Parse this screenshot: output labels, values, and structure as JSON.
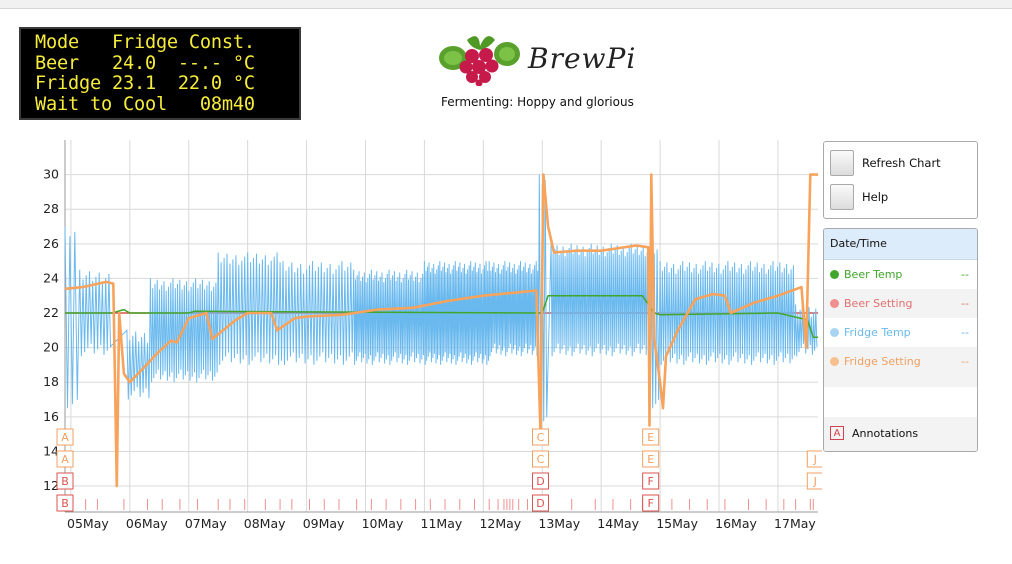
{
  "lcd": {
    "lines": [
      "Mode   Fridge Const.",
      "Beer   24.0  --.- °C",
      "Fridge 23.1  22.0 °C",
      "Wait to Cool   08m40"
    ]
  },
  "brand": {
    "name": "BrewPi",
    "subtitle": "Fermenting: Hoppy and glorious"
  },
  "buttons": {
    "refresh": "Refresh Chart",
    "help": "Help"
  },
  "legend": {
    "header": "Date/Time",
    "series": [
      {
        "name": "Beer Temp",
        "value": "--",
        "color": "#41a62a"
      },
      {
        "name": "Beer Setting",
        "value": "--",
        "color": "#ef6f6f"
      },
      {
        "name": "Fridge Temp",
        "value": "--",
        "color": "#6ab9ee"
      },
      {
        "name": "Fridge Setting",
        "value": "--",
        "color": "#f7a35c"
      }
    ],
    "annotations_label": "Annotations",
    "annotations_box": "A"
  },
  "chart_data": {
    "type": "line",
    "x_tick_labels": [
      "05May",
      "06May",
      "07May",
      "08May",
      "09May",
      "10May",
      "11May",
      "12May",
      "13May",
      "14May",
      "15May",
      "16May",
      "17May"
    ],
    "xlim": [
      -0.1,
      12.68
    ],
    "ylim": [
      10.5,
      32
    ],
    "y_ticks": [
      12,
      14,
      16,
      18,
      20,
      22,
      24,
      26,
      28,
      30
    ],
    "grid": true,
    "legend_position": "right",
    "series": [
      {
        "name": "Beer Temp",
        "color": "#41a62a",
        "points": [
          [
            -0.1,
            22
          ],
          [
            0.7,
            22
          ],
          [
            0.9,
            22.2
          ],
          [
            1.0,
            22.0
          ],
          [
            2.0,
            22.0
          ],
          [
            2.1,
            22.1
          ],
          [
            8.0,
            22.0
          ],
          [
            8.1,
            23.0
          ],
          [
            9.7,
            23.0
          ],
          [
            9.9,
            22.0
          ],
          [
            10.0,
            21.9
          ],
          [
            12.0,
            22.0
          ],
          [
            12.5,
            21.6
          ],
          [
            12.6,
            20.6
          ],
          [
            12.68,
            20.6
          ]
        ]
      },
      {
        "name": "Beer Setting",
        "color": "#d9534f",
        "points": [
          [
            -0.1,
            22
          ],
          [
            12.68,
            22
          ]
        ]
      },
      {
        "name": "Fridge Temp",
        "color": "#6ab9ee",
        "segments": [
          {
            "from": -0.1,
            "to": 0.15,
            "lo": 16.5,
            "hi": 27.0,
            "cycles": 3
          },
          {
            "from": 0.15,
            "to": 0.7,
            "lo": 19.5,
            "hi": 24.5,
            "cycles": 10
          },
          {
            "from": 0.95,
            "to": 1.35,
            "lo": 17.0,
            "hi": 21.0,
            "cycles": 8
          },
          {
            "from": 1.35,
            "to": 2.5,
            "lo": 18.0,
            "hi": 24.0,
            "cycles": 30
          },
          {
            "from": 2.5,
            "to": 3.6,
            "lo": 19.0,
            "hi": 25.5,
            "cycles": 22
          },
          {
            "from": 3.6,
            "to": 4.8,
            "lo": 19.0,
            "hi": 25.0,
            "cycles": 24
          },
          {
            "from": 4.8,
            "to": 6.0,
            "lo": 19.0,
            "hi": 24.5,
            "cycles": 40
          },
          {
            "from": 6.0,
            "to": 7.1,
            "lo": 19.0,
            "hi": 25.0,
            "cycles": 42
          },
          {
            "from": 7.1,
            "to": 7.95,
            "lo": 19.5,
            "hi": 25.0,
            "cycles": 32
          },
          {
            "from": 7.95,
            "to": 8.1,
            "lo": 15.5,
            "hi": 30.0,
            "cycles": 3
          },
          {
            "from": 8.15,
            "to": 9.85,
            "lo": 19.5,
            "hi": 26.0,
            "cycles": 50
          },
          {
            "from": 9.85,
            "to": 10.0,
            "lo": 16.5,
            "hi": 26.0,
            "cycles": 3
          },
          {
            "from": 10.0,
            "to": 12.3,
            "lo": 19.0,
            "hi": 25.0,
            "cycles": 60
          },
          {
            "from": 12.3,
            "to": 12.68,
            "lo": 19.5,
            "hi": 22.5,
            "cycles": 10
          }
        ]
      },
      {
        "name": "Fridge Setting",
        "color": "#f7a35c",
        "points": [
          [
            -0.1,
            23.4
          ],
          [
            0.2,
            23.5
          ],
          [
            0.6,
            23.8
          ],
          [
            0.72,
            23.7
          ],
          [
            0.78,
            12.0
          ],
          [
            0.82,
            22.0
          ],
          [
            0.9,
            18.5
          ],
          [
            1.0,
            18.0
          ],
          [
            1.2,
            18.7
          ],
          [
            1.5,
            19.8
          ],
          [
            1.7,
            20.4
          ],
          [
            1.8,
            20.3
          ],
          [
            2.0,
            21.7
          ],
          [
            2.3,
            22.0
          ],
          [
            2.4,
            20.5
          ],
          [
            2.8,
            21.6
          ],
          [
            3.0,
            22.0
          ],
          [
            3.4,
            22.0
          ],
          [
            3.5,
            21.0
          ],
          [
            3.8,
            21.7
          ],
          [
            4.0,
            21.8
          ],
          [
            4.6,
            21.9
          ],
          [
            5.2,
            22.2
          ],
          [
            5.8,
            22.3
          ],
          [
            6.4,
            22.7
          ],
          [
            7.0,
            23.0
          ],
          [
            7.6,
            23.2
          ],
          [
            7.9,
            23.3
          ],
          [
            7.97,
            15.0
          ],
          [
            8.02,
            30.0
          ],
          [
            8.1,
            27.0
          ],
          [
            8.2,
            25.5
          ],
          [
            8.6,
            25.6
          ],
          [
            9.0,
            25.6
          ],
          [
            9.6,
            25.9
          ],
          [
            9.8,
            25.8
          ],
          [
            9.82,
            15.5
          ],
          [
            9.85,
            30.0
          ],
          [
            9.9,
            20.5
          ],
          [
            10.0,
            18.0
          ],
          [
            10.05,
            16.5
          ],
          [
            10.1,
            19.5
          ],
          [
            10.3,
            21.0
          ],
          [
            10.6,
            22.8
          ],
          [
            10.9,
            23.1
          ],
          [
            11.1,
            23.0
          ],
          [
            11.2,
            22.0
          ],
          [
            11.6,
            22.6
          ],
          [
            12.0,
            23.0
          ],
          [
            12.4,
            23.5
          ],
          [
            12.48,
            20.0
          ],
          [
            12.55,
            30.0
          ],
          [
            12.68,
            30.0
          ]
        ]
      }
    ],
    "annotations": [
      {
        "label": "A",
        "x": -0.05,
        "row": 0
      },
      {
        "label": "A",
        "x": -0.05,
        "row": 1
      },
      {
        "label": "B",
        "x": -0.05,
        "row": 2
      },
      {
        "label": "B",
        "x": -0.05,
        "row": 3
      },
      {
        "label": "C",
        "x": 7.97,
        "row": 0
      },
      {
        "label": "C",
        "x": 7.97,
        "row": 1
      },
      {
        "label": "D",
        "x": 7.97,
        "row": 2
      },
      {
        "label": "D",
        "x": 7.97,
        "row": 3
      },
      {
        "label": "E",
        "x": 9.84,
        "row": 0
      },
      {
        "label": "E",
        "x": 9.84,
        "row": 1
      },
      {
        "label": "F",
        "x": 9.84,
        "row": 2
      },
      {
        "label": "F",
        "x": 9.84,
        "row": 3
      },
      {
        "label": "J",
        "x": 12.6,
        "row": 1
      },
      {
        "label": "J",
        "x": 12.6,
        "row": 2
      }
    ],
    "event_ticks": [
      0.25,
      0.45,
      0.9,
      1.3,
      1.55,
      1.85,
      2.15,
      2.5,
      2.7,
      2.95,
      3.3,
      3.55,
      3.75,
      4.05,
      4.3,
      4.55,
      4.85,
      5.1,
      5.35,
      5.6,
      5.85,
      6.1,
      6.35,
      6.6,
      6.85,
      7.1,
      7.25,
      7.35,
      7.4,
      7.45,
      7.5,
      7.6,
      7.75,
      7.9,
      8.05,
      8.5,
      8.9,
      9.2,
      9.5,
      9.7,
      10.2,
      10.5,
      10.8,
      11.1,
      11.5,
      11.8,
      12.1,
      12.3,
      12.55,
      12.6
    ]
  }
}
